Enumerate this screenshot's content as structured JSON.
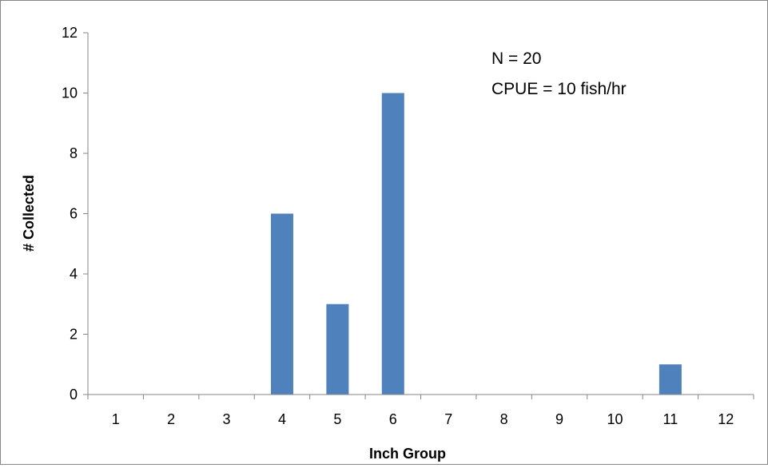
{
  "chart_data": {
    "type": "bar",
    "categories": [
      "1",
      "2",
      "3",
      "4",
      "5",
      "6",
      "7",
      "8",
      "9",
      "10",
      "11",
      "12"
    ],
    "values": [
      0,
      0,
      0,
      6,
      3,
      10,
      0,
      0,
      0,
      0,
      1,
      0
    ],
    "xlabel": "Inch Group",
    "ylabel": "# Collected",
    "ylim": [
      0,
      12
    ],
    "yticks": [
      "0",
      "2",
      "4",
      "6",
      "8",
      "10",
      "12"
    ],
    "grid": false,
    "legend": "none",
    "bar_color": "#4F81BD",
    "axis_color": "#868686",
    "annotations": [
      "N = 20",
      "CPUE = 10 fish/hr"
    ]
  }
}
